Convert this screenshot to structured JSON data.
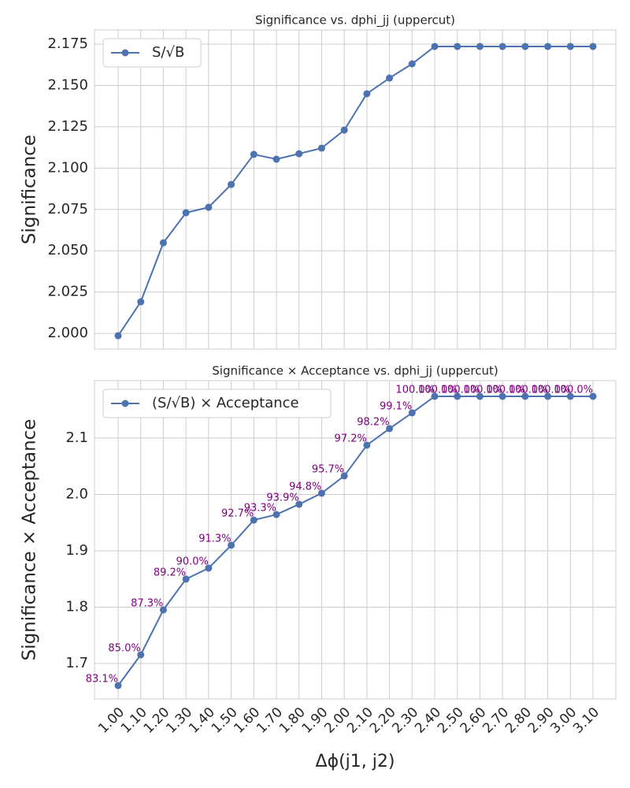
{
  "chart_data": [
    {
      "type": "line",
      "title": "Significance vs. dphi_jj (uppercut)",
      "ylabel": "Significance",
      "x": [
        1.0,
        1.1,
        1.2,
        1.3,
        1.4,
        1.5,
        1.6,
        1.7,
        1.8,
        1.9,
        2.0,
        2.1,
        2.2,
        2.3,
        2.4,
        2.5,
        2.6,
        2.7,
        2.8,
        2.9,
        3.0,
        3.1
      ],
      "series": [
        {
          "name": "S/√B",
          "color": "#4c72b0",
          "values": [
            1.9986,
            2.0191,
            2.0548,
            2.073,
            2.0763,
            2.0901,
            2.1083,
            2.1054,
            2.1087,
            2.1121,
            2.123,
            2.145,
            2.1545,
            2.1631,
            2.1736,
            2.1736,
            2.1736,
            2.1736,
            2.1736,
            2.1736,
            2.1736,
            2.1736
          ]
        }
      ],
      "xlim": [
        0.8955,
        3.201
      ],
      "ylim": [
        1.9905,
        2.1836
      ],
      "xticks": [
        1.0,
        1.1,
        1.2,
        1.3,
        1.4,
        1.5,
        1.6,
        1.7,
        1.8,
        1.9,
        2.0,
        2.1,
        2.2,
        2.3,
        2.4,
        2.5,
        2.6,
        2.7,
        2.8,
        2.9,
        3.0,
        3.1
      ],
      "yticks": [
        {
          "value": 2.0,
          "label": "2.000"
        },
        {
          "value": 2.025,
          "label": "2.025"
        },
        {
          "value": 2.05,
          "label": "2.050"
        },
        {
          "value": 2.075,
          "label": "2.075"
        },
        {
          "value": 2.1,
          "label": "2.100"
        },
        {
          "value": 2.125,
          "label": "2.125"
        },
        {
          "value": 2.15,
          "label": "2.150"
        },
        {
          "value": 2.175,
          "label": "2.175"
        }
      ],
      "grid": true,
      "legend": "upper left"
    },
    {
      "type": "line",
      "title": "Significance × Acceptance vs. dphi_jj (uppercut)",
      "ylabel": "Significance × Acceptance",
      "xlabel": "Δϕ(j1, j2)",
      "x": [
        1.0,
        1.1,
        1.2,
        1.3,
        1.4,
        1.5,
        1.6,
        1.7,
        1.8,
        1.9,
        2.0,
        2.1,
        2.2,
        2.3,
        2.4,
        2.5,
        2.6,
        2.7,
        2.8,
        2.9,
        3.0,
        3.1
      ],
      "series": [
        {
          "name": "(S/√B) × Acceptance",
          "color": "#4c72b0",
          "values": [
            1.6608,
            1.7154,
            1.7951,
            1.8497,
            1.8692,
            1.9098,
            1.9545,
            1.9643,
            1.9825,
            2.0021,
            2.0329,
            2.0874,
            2.1168,
            2.1448,
            2.1741,
            2.1741,
            2.1741,
            2.1741,
            2.1741,
            2.1741,
            2.1741,
            2.1741
          ]
        }
      ],
      "annotations": [
        "83.1%",
        "85.0%",
        "87.3%",
        "89.2%",
        "90.0%",
        "91.3%",
        "92.7%",
        "93.3%",
        "93.9%",
        "94.8%",
        "95.7%",
        "97.2%",
        "98.2%",
        "99.1%",
        "100.0%",
        "100.0%",
        "100.0%",
        "100.0%",
        "100.0%",
        "100.0%",
        "100.0%",
        "100.0%"
      ],
      "annotation_color": "purple",
      "xlim": [
        0.8955,
        3.201
      ],
      "ylim": [
        1.637,
        2.202
      ],
      "xticks": [
        {
          "value": 1.0,
          "label": "1.00"
        },
        {
          "value": 1.1,
          "label": "1.10"
        },
        {
          "value": 1.2,
          "label": "1.20"
        },
        {
          "value": 1.3,
          "label": "1.30"
        },
        {
          "value": 1.4,
          "label": "1.40"
        },
        {
          "value": 1.5,
          "label": "1.50"
        },
        {
          "value": 1.6,
          "label": "1.60"
        },
        {
          "value": 1.7,
          "label": "1.70"
        },
        {
          "value": 1.8,
          "label": "1.80"
        },
        {
          "value": 1.9,
          "label": "1.90"
        },
        {
          "value": 2.0,
          "label": "2.00"
        },
        {
          "value": 2.1,
          "label": "2.10"
        },
        {
          "value": 2.2,
          "label": "2.20"
        },
        {
          "value": 2.3,
          "label": "2.30"
        },
        {
          "value": 2.4,
          "label": "2.40"
        },
        {
          "value": 2.5,
          "label": "2.50"
        },
        {
          "value": 2.6,
          "label": "2.60"
        },
        {
          "value": 2.7,
          "label": "2.70"
        },
        {
          "value": 2.8,
          "label": "2.80"
        },
        {
          "value": 2.9,
          "label": "2.90"
        },
        {
          "value": 3.0,
          "label": "3.00"
        },
        {
          "value": 3.1,
          "label": "3.10"
        }
      ],
      "yticks": [
        {
          "value": 1.7,
          "label": "1.7"
        },
        {
          "value": 1.8,
          "label": "1.8"
        },
        {
          "value": 1.9,
          "label": "1.9"
        },
        {
          "value": 2.0,
          "label": "2.0"
        },
        {
          "value": 2.1,
          "label": "2.1"
        }
      ],
      "grid": true,
      "legend": "upper left"
    }
  ]
}
